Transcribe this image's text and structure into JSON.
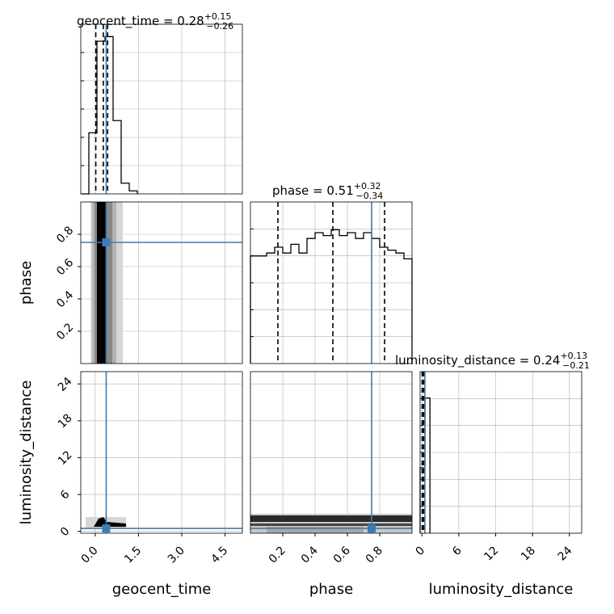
{
  "chart_data": {
    "type": "corner",
    "parameters": [
      "geocent_time",
      "phase",
      "luminosity_distance"
    ],
    "colors": {
      "truth": "#3c7cb4",
      "hist": "#000000",
      "grid": "#b0b0b0"
    },
    "titles": [
      {
        "prefix": "geocent_time = 0.28",
        "sup": "+0.15",
        "sub": "−0.26"
      },
      {
        "prefix": "phase = 0.51",
        "sup": "+0.32",
        "sub": "−0.34"
      },
      {
        "prefix": "luminosity_distance = 0.24",
        "sup": "+0.13",
        "sub": "−0.21"
      }
    ],
    "axis_labels": [
      "geocent_time",
      "phase",
      "luminosity_distance"
    ],
    "ranges": [
      [
        -0.5,
        5.1
      ],
      [
        0.0,
        1.0
      ],
      [
        -0.3,
        26.0
      ]
    ],
    "ticks": [
      {
        "values": [
          0.0,
          1.5,
          3.0,
          4.5
        ],
        "labels": [
          "0.0",
          "1.5",
          "3.0",
          "4.5"
        ]
      },
      {
        "values": [
          0.2,
          0.4,
          0.6,
          0.8
        ],
        "labels": [
          "0.2",
          "0.4",
          "0.6",
          "0.8"
        ]
      },
      {
        "values": [
          0,
          6,
          12,
          18,
          24
        ],
        "labels": [
          "0",
          "6",
          "12",
          "18",
          "24"
        ]
      }
    ],
    "truths": [
      0.38,
      0.75,
      0.48
    ],
    "quantiles": [
      [
        0.02,
        0.28,
        0.43
      ],
      [
        0.17,
        0.51,
        0.83
      ],
      [
        0.03,
        0.24,
        0.37
      ]
    ],
    "hist": [
      {
        "edges": [
          -0.5,
          -0.22,
          0.06,
          0.34,
          0.62,
          0.9,
          1.18,
          1.46
        ],
        "counts": [
          0,
          0.4,
          1.0,
          1.03,
          0.48,
          0.07,
          0.02
        ]
      },
      {
        "edges": [
          0.0,
          0.05,
          0.1,
          0.15,
          0.2,
          0.25,
          0.3,
          0.35,
          0.4,
          0.45,
          0.5,
          0.55,
          0.6,
          0.65,
          0.7,
          0.75,
          0.8,
          0.85,
          0.9,
          0.95,
          1.0
        ],
        "counts": [
          0.74,
          0.74,
          0.76,
          0.8,
          0.76,
          0.82,
          0.76,
          0.86,
          0.9,
          0.88,
          0.92,
          0.88,
          0.9,
          0.86,
          0.9,
          0.86,
          0.8,
          0.78,
          0.76,
          0.72
        ]
      },
      {
        "edges": [
          -0.3,
          0.5,
          1.3
        ],
        "counts": [
          0.45,
          0.93
        ]
      }
    ]
  }
}
